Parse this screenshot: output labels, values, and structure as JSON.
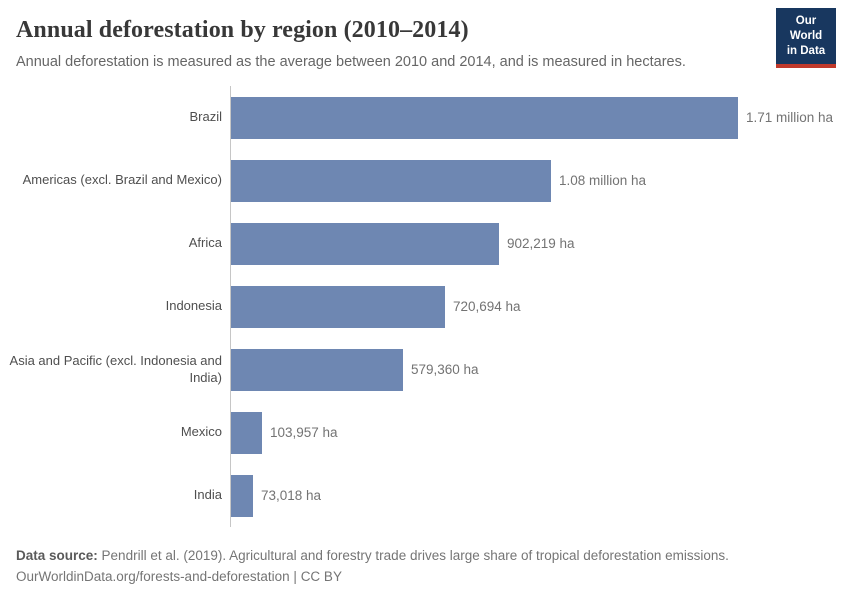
{
  "header": {
    "title": "Annual deforestation by region (2010–2014)",
    "subtitle": "Annual deforestation is measured as the average between 2010 and 2014, and is measured in hectares.",
    "logo": {
      "line1": "Our World",
      "line2": "in Data",
      "bg_color": "#18375f",
      "accent_color": "#c0392b"
    }
  },
  "chart_data": {
    "type": "bar",
    "orientation": "horizontal",
    "title": "Annual deforestation by region (2010–2014)",
    "subtitle": "Annual deforestation is measured as the average between 2010 and 2014, and is measured in hectares.",
    "categories": [
      "Brazil",
      "Americas (excl. Brazil and Mexico)",
      "Africa",
      "Indonesia",
      "Asia and Pacific (excl. Indonesia and India)",
      "Mexico",
      "India"
    ],
    "values": [
      1710000,
      1080000,
      902219,
      720694,
      579360,
      103957,
      73018
    ],
    "value_labels": [
      "1.71 million ha",
      "1.08 million ha",
      "902,219 ha",
      "720,694 ha",
      "579,360 ha",
      "103,957 ha",
      "73,018 ha"
    ],
    "unit": "hectares",
    "xlabel": "",
    "ylabel": "",
    "xlim": [
      0,
      1710000
    ],
    "grid": false,
    "legend": "none",
    "bar_color": "#6e87b2",
    "axis_line_color": "#c6c6c6"
  },
  "footer": {
    "source_label": "Data source:",
    "source_text": "Pendrill et al. (2019). Agricultural and forestry trade drives large share of tropical deforestation emissions.",
    "link_text": "OurWorldinData.org/forests-and-deforestation",
    "separator": "|",
    "license": "CC BY"
  }
}
